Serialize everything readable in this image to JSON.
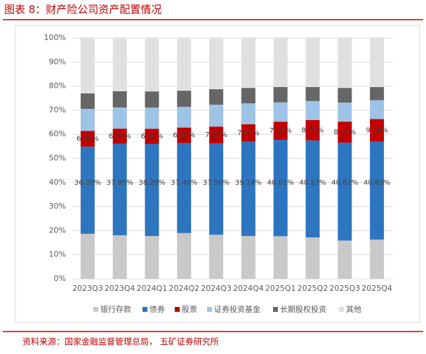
{
  "chart_data": {
    "type": "stacked_bar",
    "title": "图表 8：财产险公司资产配置情况",
    "source": "资料来源：国家金融监督管理总局， 五矿证券研究所",
    "categories": [
      "2023Q3",
      "2023Q4",
      "2024Q1",
      "2024Q2",
      "2024Q3",
      "2024Q4",
      "2025Q1",
      "2025Q2",
      "2025Q3",
      "2025Q4"
    ],
    "series": [
      {
        "name": "银行存款",
        "color": "#c9c9c9",
        "values": [
          18.7,
          18.1,
          17.8,
          19.0,
          18.3,
          17.8,
          17.7,
          17.2,
          15.9,
          16.3
        ]
      },
      {
        "name": "债券",
        "color": "#2e75c0",
        "values": [
          36.2,
          37.95,
          38.2,
          37.4,
          37.9,
          39.14,
          40.01,
          40.27,
          40.62,
          40.63
        ],
        "value_labels": [
          "36.20%",
          "37.95%",
          "38.20%",
          "37.40%",
          "37.90%",
          "39.14%",
          "40.01%",
          "40.27%",
          "40.62%",
          "40.63%"
        ]
      },
      {
        "name": "股票",
        "color": "#c00000",
        "values": [
          6.47,
          6.29,
          6.3,
          6.4,
          7.0,
          7.22,
          7.53,
          8.43,
          8.74,
          9.39
        ],
        "value_labels": [
          "6.47%",
          "6.29%",
          "6.30%",
          "6.40%",
          "7.00%",
          "7.22%",
          "7.53%",
          "8.43%",
          "8.74%",
          "9.39%"
        ]
      },
      {
        "name": "证券投资基金",
        "color": "#9dc3e6",
        "values": [
          9.2,
          8.8,
          8.8,
          8.6,
          9.1,
          8.7,
          8.0,
          7.9,
          7.9,
          7.8
        ]
      },
      {
        "name": "长期股权投资",
        "color": "#666666",
        "values": [
          6.4,
          6.7,
          6.7,
          6.7,
          6.4,
          6.4,
          6.4,
          5.8,
          6.1,
          5.5
        ]
      },
      {
        "name": "其他",
        "color": "#e0e0e0",
        "values": [
          23.03,
          22.16,
          22.2,
          21.9,
          21.3,
          20.74,
          20.36,
          20.4,
          20.74,
          20.38
        ]
      }
    ],
    "ylim": [
      0,
      100
    ],
    "yticks": [
      {
        "value": 0,
        "label": "0%"
      },
      {
        "value": 10,
        "label": "10%"
      },
      {
        "value": 20,
        "label": "20%"
      },
      {
        "value": 30,
        "label": "30%"
      },
      {
        "value": 40,
        "label": "40%"
      },
      {
        "value": 50,
        "label": "50%"
      },
      {
        "value": 60,
        "label": "60%"
      },
      {
        "value": 70,
        "label": "70%"
      },
      {
        "value": 80,
        "label": "80%"
      },
      {
        "value": 90,
        "label": "90%"
      },
      {
        "value": 100,
        "label": "100%"
      }
    ],
    "grid": true,
    "legend": "bottom"
  }
}
